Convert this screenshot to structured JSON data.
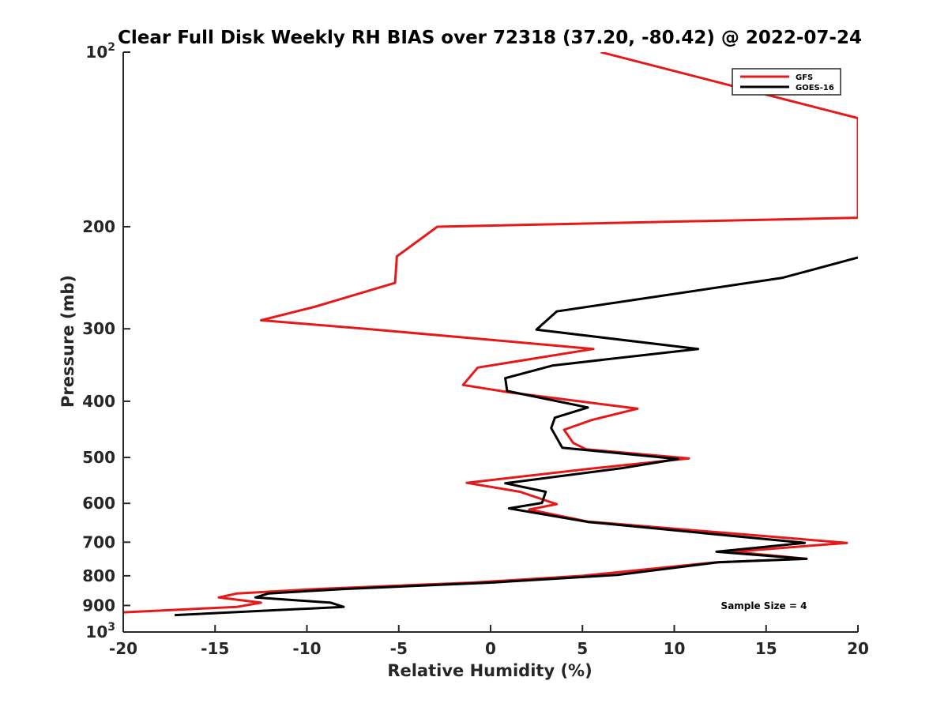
{
  "chart_data": {
    "type": "line",
    "title": "Clear Full Disk Weekly RH BIAS over 72318 (37.20, -80.42) @ 2022-07-24",
    "xlabel": "Relative Humidity (%)",
    "ylabel": "Pressure (mb)",
    "xlim": [
      -20,
      20
    ],
    "ylim": [
      100,
      1000
    ],
    "y_scale": "log",
    "y_reversed": true,
    "grid": false,
    "legend_location": "top-right",
    "x_ticks": [
      "-20",
      "-15",
      "-10",
      "-5",
      "0",
      "5",
      "10",
      "15",
      "20"
    ],
    "y_ticks": [
      {
        "value": 100,
        "base": "10",
        "exp": "2"
      },
      {
        "value": 200,
        "label": "200"
      },
      {
        "value": 300,
        "label": "300"
      },
      {
        "value": 400,
        "label": "400"
      },
      {
        "value": 500,
        "label": "500"
      },
      {
        "value": 600,
        "label": "600"
      },
      {
        "value": 700,
        "label": "700"
      },
      {
        "value": 800,
        "label": "800"
      },
      {
        "value": 900,
        "label": "900"
      },
      {
        "value": 1000,
        "base": "10",
        "exp": "3"
      }
    ],
    "series": [
      {
        "name": "GFS",
        "color": "#e6191a",
        "points": [
          [
            6,
            100
          ],
          [
            20,
            130
          ],
          [
            20,
            193
          ],
          [
            -2.9,
            200
          ],
          [
            -5.1,
            225
          ],
          [
            -5.2,
            250
          ],
          [
            -9.6,
            275
          ],
          [
            -12.5,
            290
          ],
          [
            -6.8,
            300
          ],
          [
            5.6,
            325
          ],
          [
            -0.7,
            350
          ],
          [
            -1.5,
            375
          ],
          [
            1,
            386
          ],
          [
            8,
            412
          ],
          [
            5.5,
            431
          ],
          [
            4,
            448
          ],
          [
            4.5,
            472
          ],
          [
            5.2,
            484
          ],
          [
            10.8,
            502
          ],
          [
            5.4,
            523
          ],
          [
            -1.3,
            553
          ],
          [
            1.6,
            573
          ],
          [
            3.6,
            602
          ],
          [
            2.1,
            615
          ],
          [
            5.3,
            645
          ],
          [
            19.4,
            702
          ],
          [
            13.2,
            727
          ],
          [
            17.2,
            748
          ],
          [
            12.3,
            758
          ],
          [
            5,
            800
          ],
          [
            -1,
            822
          ],
          [
            -9.5,
            843
          ],
          [
            -13.8,
            858
          ],
          [
            -14.8,
            872
          ],
          [
            -12.5,
            890
          ],
          [
            -13.8,
            905
          ],
          [
            -20,
            925
          ]
        ]
      },
      {
        "name": "GOES-16",
        "color": "#000000",
        "points": [
          [
            20,
            226
          ],
          [
            15.9,
            245
          ],
          [
            3.6,
            280
          ],
          [
            2.5,
            301
          ],
          [
            11.3,
            325
          ],
          [
            3.4,
            347
          ],
          [
            0.8,
            365
          ],
          [
            0.9,
            384
          ],
          [
            5.3,
            410
          ],
          [
            3.5,
            427
          ],
          [
            3.3,
            445
          ],
          [
            3.9,
            481
          ],
          [
            10.2,
            503
          ],
          [
            7.1,
            522
          ],
          [
            0.8,
            554
          ],
          [
            3,
            573
          ],
          [
            2.8,
            599
          ],
          [
            1,
            612
          ],
          [
            5.3,
            646
          ],
          [
            17.1,
            702
          ],
          [
            12.3,
            727
          ],
          [
            17.2,
            748
          ],
          [
            12.4,
            758
          ],
          [
            6.9,
            797
          ],
          [
            0,
            822
          ],
          [
            -8,
            843
          ],
          [
            -12.1,
            858
          ],
          [
            -12.8,
            872
          ],
          [
            -8.7,
            890
          ],
          [
            -8,
            905
          ],
          [
            -17.2,
            935
          ]
        ]
      }
    ],
    "annotation": "Sample Size = 4"
  }
}
